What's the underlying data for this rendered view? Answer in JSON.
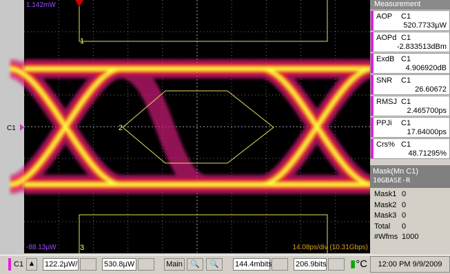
{
  "screen": {
    "top_level": "1.142mW",
    "bottom_level": "-88.13µW",
    "timebase": "14.08ps/div (10.31Gbps)",
    "channel_marker": "C1",
    "mask_labels": [
      "1",
      "2",
      "3"
    ]
  },
  "measurements": {
    "title": "Measurement",
    "items": [
      {
        "name": "AOP",
        "channel": "C1",
        "value": "520.7733µW"
      },
      {
        "name": "AOPd",
        "channel": "C1",
        "value": "-2.833513dBm"
      },
      {
        "name": "ExdB",
        "channel": "C1",
        "value": "4.906920dB"
      },
      {
        "name": "SNR",
        "channel": "C1",
        "value": "26.60672"
      },
      {
        "name": "RMSJ",
        "channel": "C1",
        "value": "2.465700ps"
      },
      {
        "name": "PPJi",
        "channel": "C1",
        "value": "17.64000ps"
      },
      {
        "name": "Crs%",
        "channel": "C1",
        "value": "48.71295%"
      }
    ]
  },
  "mask": {
    "title": "Mask(Mn C1)",
    "standard": "10GBASE-R",
    "counts": [
      {
        "label": "Mask1",
        "value": 0
      },
      {
        "label": "Mask2",
        "value": 0
      },
      {
        "label": "Mask3",
        "value": 0
      },
      {
        "label": "Total",
        "value": 0
      },
      {
        "label": "#Wfms",
        "value": 1000
      }
    ]
  },
  "toolbar": {
    "channel": "C1",
    "scale": "122.2µW/",
    "offset": "530.8µW",
    "timebase_mode": "Main",
    "record": "144.4mbits",
    "position": "206.9bits",
    "temp_unit": "°C",
    "clock": "12:00 PM 9/9/2009"
  }
}
